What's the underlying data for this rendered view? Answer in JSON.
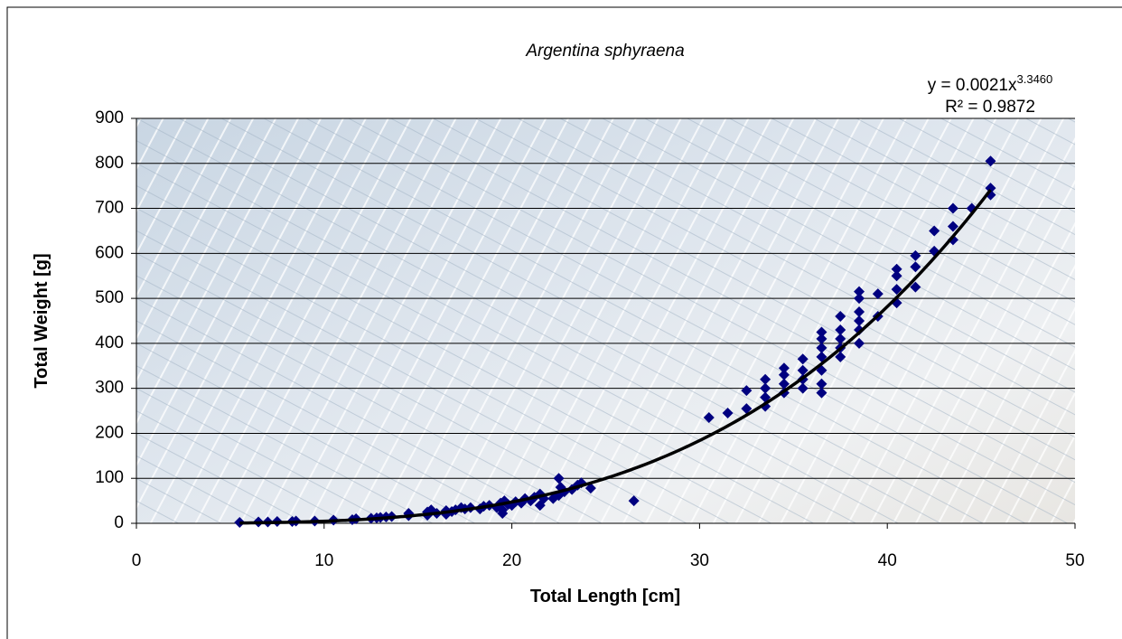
{
  "chart_data": {
    "type": "scatter",
    "title": "Argentina sphyraena",
    "x_label": "Total Length [cm]",
    "y_label": "Total Weight [g]",
    "color": "#000080",
    "x": [
      5.5,
      6.5,
      7,
      7.5,
      8.3,
      8.5,
      9.5,
      10.5,
      11.5,
      11.7,
      12.5,
      12.8,
      13,
      13.3,
      13.6,
      14.5,
      14.5,
      15.5,
      15.5,
      15.7,
      16,
      16.5,
      16.5,
      16.8,
      17,
      17.3,
      17.5,
      17.8,
      18.3,
      18.5,
      18.8,
      19.2,
      19.4,
      19.5,
      19.5,
      19.6,
      19.8,
      20,
      20.2,
      20.5,
      20.7,
      21,
      21.2,
      21.5,
      21.5,
      21.7,
      22.2,
      22.5,
      22.5,
      22.6,
      22.8,
      23.2,
      23.5,
      23.7,
      24.2,
      26.5,
      30.5,
      31.5,
      32.5,
      32.5,
      33.5,
      33.5,
      33.5,
      33.5,
      34.5,
      34.5,
      34.5,
      34.5,
      35.5,
      35.5,
      35.5,
      35.5,
      36.5,
      36.5,
      36.5,
      36.5,
      36.5,
      36.5,
      36.5,
      37.5,
      37.5,
      37.5,
      37.5,
      37.5,
      38.5,
      38.5,
      38.5,
      38.5,
      38.5,
      38.5,
      39.5,
      39.5,
      40.5,
      40.5,
      40.5,
      40.5,
      41.5,
      41.5,
      41.5,
      42.5,
      42.5,
      43.5,
      43.5,
      43.5,
      44.5,
      45.5,
      45.5,
      45.5
    ],
    "values": [
      2,
      3,
      3,
      4,
      4,
      5,
      5,
      7,
      8,
      10,
      11,
      12,
      13,
      14,
      15,
      17,
      22,
      18,
      25,
      30,
      22,
      20,
      28,
      26,
      30,
      35,
      32,
      35,
      32,
      38,
      40,
      35,
      45,
      22,
      30,
      50,
      42,
      40,
      48,
      45,
      55,
      50,
      58,
      40,
      65,
      55,
      55,
      62,
      100,
      80,
      70,
      75,
      85,
      90,
      78,
      50,
      235,
      245,
      255,
      295,
      260,
      280,
      300,
      320,
      290,
      310,
      330,
      345,
      300,
      320,
      340,
      365,
      290,
      310,
      340,
      370,
      390,
      410,
      425,
      370,
      390,
      410,
      430,
      460,
      400,
      430,
      450,
      470,
      500,
      515,
      460,
      510,
      490,
      520,
      550,
      565,
      525,
      570,
      595,
      605,
      650,
      630,
      660,
      700,
      700,
      730,
      745,
      805
    ],
    "trendline": {
      "prefix": "y = ",
      "coefficient": 0.0021,
      "variable": "x",
      "exponent": {
        "value": 3.346,
        "label": "3.3460"
      },
      "r_squared_prefix": "R² = ",
      "r_squared": 0.9872,
      "color": "#000000"
    },
    "xlim": [
      0,
      50
    ],
    "xticks": [
      0,
      10,
      20,
      30,
      40,
      50
    ],
    "ylim": [
      0,
      900
    ],
    "yticks": [
      0,
      100,
      200,
      300,
      400,
      500,
      600,
      700,
      800,
      900
    ],
    "grid": true
  }
}
